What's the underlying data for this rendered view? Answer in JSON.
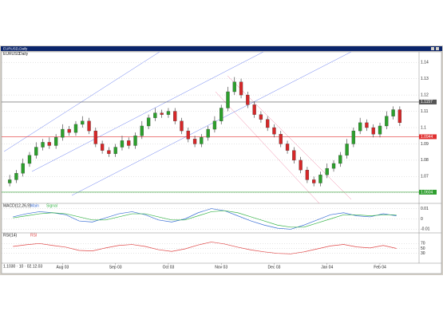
{
  "window": {
    "title": "EURUSD,Daily",
    "footer": "1.1030 · 10 · 02.12.03"
  },
  "chart_data": [
    {
      "type": "candlestick",
      "title": "EURUSD",
      "subtitle": "Daily",
      "categories": [
        null,
        null,
        null,
        null,
        null,
        null,
        null,
        null,
        "Aug 03",
        null,
        null,
        null,
        null,
        null,
        null,
        null,
        "Sep 03",
        null,
        null,
        null,
        null,
        null,
        null,
        null,
        "Oct 03",
        null,
        null,
        null,
        null,
        null,
        null,
        null,
        "Nov 03",
        null,
        null,
        null,
        null,
        null,
        null,
        null,
        "Dec 03",
        null,
        null,
        null,
        null,
        null,
        null,
        null,
        "Jan 04",
        null,
        null,
        null,
        null,
        null,
        null,
        null,
        "Feb 04",
        null,
        null,
        null
      ],
      "open": [
        1.066,
        1.068,
        1.072,
        1.078,
        1.083,
        1.088,
        1.091,
        1.089,
        1.094,
        1.099,
        1.097,
        1.102,
        1.104,
        1.098,
        1.09,
        1.086,
        1.084,
        1.088,
        1.092,
        1.089,
        1.095,
        1.101,
        1.106,
        1.109,
        1.108,
        1.11,
        1.104,
        1.098,
        1.093,
        1.09,
        1.094,
        1.099,
        1.104,
        1.112,
        1.122,
        1.128,
        1.12,
        1.114,
        1.108,
        1.105,
        1.1,
        1.096,
        1.09,
        1.086,
        1.08,
        1.074,
        1.068,
        1.066,
        1.071,
        1.075,
        1.078,
        1.083,
        1.09,
        1.098,
        1.103,
        1.1,
        1.096,
        1.101,
        1.107,
        1.111
      ],
      "high": [
        1.071,
        1.074,
        1.081,
        1.085,
        1.091,
        1.093,
        1.094,
        1.096,
        1.102,
        1.101,
        1.104,
        1.107,
        1.106,
        1.1,
        1.092,
        1.088,
        1.09,
        1.095,
        1.094,
        1.097,
        1.104,
        1.108,
        1.112,
        1.111,
        1.112,
        1.112,
        1.106,
        1.1,
        1.095,
        1.096,
        1.101,
        1.107,
        1.114,
        1.125,
        1.131,
        1.13,
        1.122,
        1.116,
        1.11,
        1.107,
        1.102,
        1.098,
        1.092,
        1.088,
        1.082,
        1.076,
        1.07,
        1.073,
        1.078,
        1.08,
        1.085,
        1.093,
        1.1,
        1.106,
        1.105,
        1.102,
        1.103,
        1.11,
        1.113,
        1.113
      ],
      "low": [
        1.064,
        1.066,
        1.07,
        1.076,
        1.081,
        1.086,
        1.087,
        1.087,
        1.092,
        1.095,
        1.095,
        1.1,
        1.096,
        1.088,
        1.084,
        1.082,
        1.082,
        1.086,
        1.087,
        1.087,
        1.093,
        1.099,
        1.104,
        1.106,
        1.106,
        1.102,
        1.096,
        1.091,
        1.088,
        1.088,
        1.092,
        1.097,
        1.102,
        1.11,
        1.12,
        1.118,
        1.112,
        1.106,
        1.103,
        1.098,
        1.094,
        1.088,
        1.084,
        1.078,
        1.072,
        1.066,
        1.064,
        1.064,
        1.069,
        1.073,
        1.076,
        1.081,
        1.088,
        1.096,
        1.098,
        1.094,
        1.094,
        1.099,
        1.105,
        1.101
      ],
      "close": [
        1.068,
        1.072,
        1.078,
        1.083,
        1.088,
        1.091,
        1.089,
        1.094,
        1.099,
        1.097,
        1.102,
        1.104,
        1.098,
        1.09,
        1.086,
        1.084,
        1.088,
        1.092,
        1.089,
        1.095,
        1.101,
        1.106,
        1.109,
        1.108,
        1.11,
        1.104,
        1.098,
        1.093,
        1.09,
        1.094,
        1.099,
        1.104,
        1.112,
        1.122,
        1.128,
        1.12,
        1.114,
        1.108,
        1.105,
        1.1,
        1.096,
        1.09,
        1.086,
        1.08,
        1.074,
        1.068,
        1.066,
        1.071,
        1.075,
        1.078,
        1.083,
        1.09,
        1.098,
        1.103,
        1.1,
        1.096,
        1.101,
        1.107,
        1.111,
        1.103
      ],
      "up_color": "#2ca02c",
      "down_color": "#d62728",
      "ylim": [
        1.055,
        1.145
      ],
      "yticks": [
        1.06,
        1.07,
        1.08,
        1.09,
        1.1,
        1.11,
        1.12,
        1.13,
        1.14
      ],
      "levels": [
        {
          "value": 1.1157,
          "color": "#555555"
        },
        {
          "value": 1.0944,
          "color": "#e03030"
        },
        {
          "value": 1.0604,
          "color": "#2e9e2e"
        }
      ]
    },
    {
      "type": "line",
      "title": "MACD(12,26,9)",
      "series": [
        {
          "name": "Main",
          "color": "#3b6fd6",
          "values": [
            0.002,
            0.005,
            0.007,
            0.006,
            0.004,
            -0.002,
            -0.003,
            0.001,
            0.005,
            0.007,
            0.004,
            -0.001,
            -0.003,
            0,
            0.006,
            0.01,
            0.008,
            0.003,
            -0.002,
            -0.006,
            -0.009,
            -0.01,
            -0.006,
            -0.001,
            0.004,
            0.006,
            0.003,
            0.002,
            0.005,
            0.003
          ]
        },
        {
          "name": "Signal",
          "color": "#39b54a",
          "values": [
            0.001,
            0.003,
            0.005,
            0.006,
            0.005,
            0.002,
            -0.001,
            -0.001,
            0.002,
            0.005,
            0.005,
            0.002,
            -0.001,
            -0.001,
            0.003,
            0.007,
            0.008,
            0.006,
            0.002,
            -0.002,
            -0.006,
            -0.008,
            -0.008,
            -0.004,
            0,
            0.004,
            0.004,
            0.003,
            0.004,
            0.004
          ]
        }
      ],
      "ylim": [
        -0.012,
        0.012
      ],
      "yticks": [
        -0.01,
        0,
        0.01
      ]
    },
    {
      "type": "line",
      "title": "RSI(14)",
      "series": [
        {
          "name": "RSI",
          "color": "#e04848",
          "values": [
            58,
            65,
            70,
            62,
            55,
            42,
            40,
            52,
            62,
            66,
            58,
            45,
            38,
            48,
            64,
            76,
            68,
            55,
            44,
            36,
            30,
            28,
            36,
            48,
            60,
            66,
            56,
            52,
            62,
            50
          ]
        }
      ],
      "ylim": [
        0,
        100
      ],
      "yticks": [
        30,
        50,
        70
      ]
    }
  ]
}
